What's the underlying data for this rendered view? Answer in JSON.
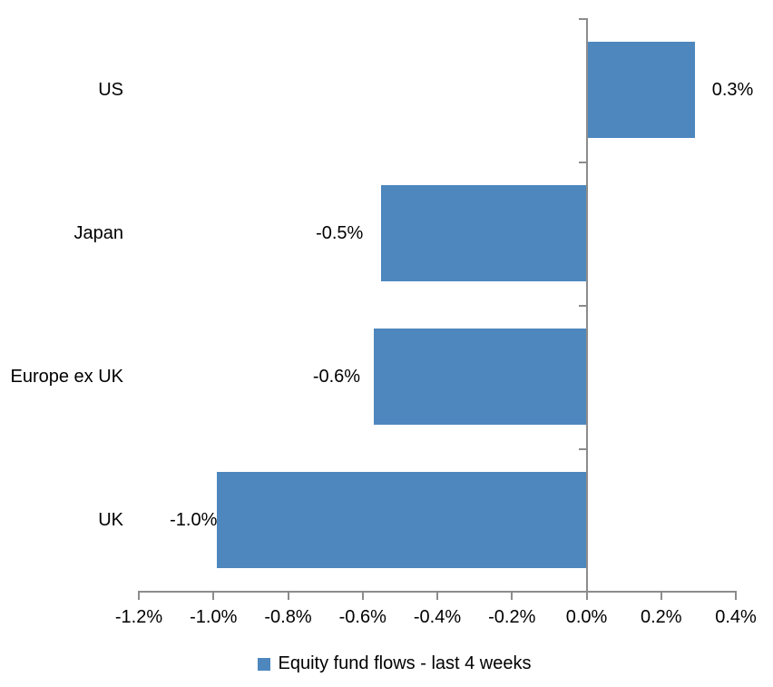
{
  "chart_data": {
    "type": "bar",
    "orientation": "horizontal",
    "title": "",
    "categories": [
      "US",
      "Japan",
      "Europe ex UK",
      "UK"
    ],
    "values": [
      0.3,
      -0.5,
      -0.6,
      -1.0
    ],
    "value_labels": [
      "0.3%",
      "-0.5%",
      "-0.6%",
      "-1.0%"
    ],
    "plot_values": [
      0.29,
      -0.55,
      -0.57,
      -0.99
    ],
    "unit": "percent",
    "x_axis": {
      "range": [
        -1.2,
        0.4
      ],
      "tick_values": [
        -1.2,
        -1.0,
        -0.8,
        -0.6,
        -0.4,
        -0.2,
        0.0,
        0.2,
        0.4
      ],
      "tick_labels": [
        "-1.2%",
        "-1.0%",
        "-0.8%",
        "-0.6%",
        "-0.4%",
        "-0.2%",
        "0.0%",
        "0.2%",
        "0.4%"
      ]
    },
    "grid": false,
    "data_labels": "outside-end",
    "legend": {
      "position": "bottom",
      "entries": [
        {
          "label": "Equity fund flows - last 4 weeks",
          "swatch_color": "#4d87be"
        }
      ]
    },
    "colors": {
      "bar": "#4d87be",
      "axis": "#8c8c8c",
      "text": "#000000",
      "background": "#ffffff"
    }
  }
}
